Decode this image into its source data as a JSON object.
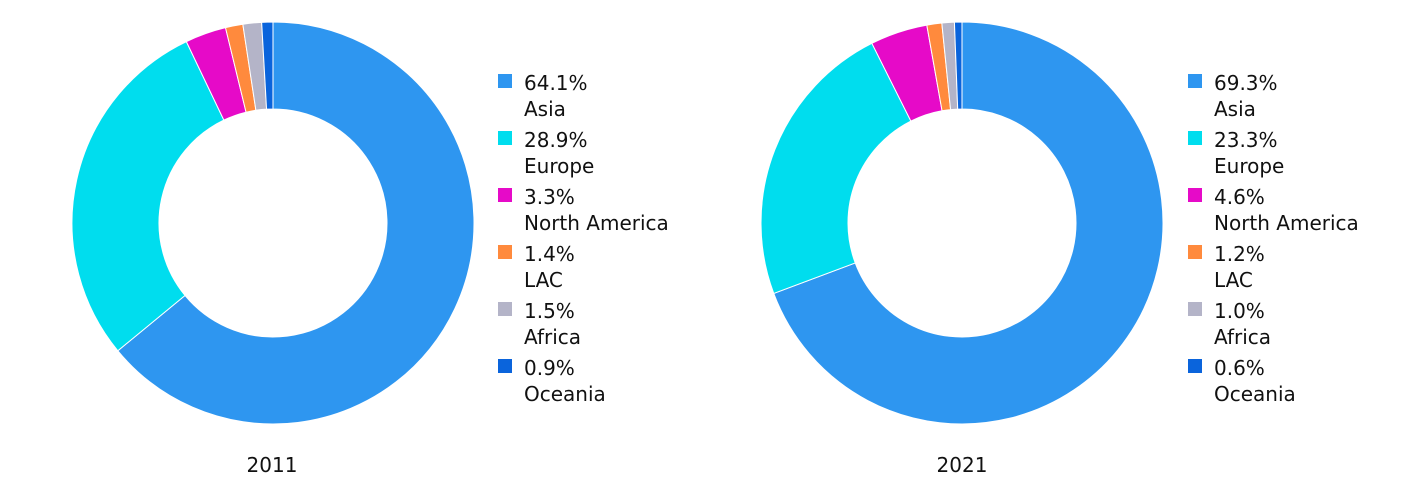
{
  "chart_data": [
    {
      "type": "pie",
      "donut": true,
      "caption": "2011",
      "slices": [
        {
          "label": "Asia",
          "value": 64.1,
          "display": "64.1%",
          "color": "#2E96F0"
        },
        {
          "label": "Europe",
          "value": 28.9,
          "display": "28.9%",
          "color": "#00DDEE"
        },
        {
          "label": "North America",
          "value": 3.3,
          "display": "3.3%",
          "color": "#E60AC8"
        },
        {
          "label": "LAC",
          "value": 1.4,
          "display": "1.4%",
          "color": "#FF8A3D"
        },
        {
          "label": "Africa",
          "value": 1.5,
          "display": "1.5%",
          "color": "#B4B4C8"
        },
        {
          "label": "Oceania",
          "value": 0.9,
          "display": "0.9%",
          "color": "#0A64DC"
        }
      ],
      "legend_position": "right"
    },
    {
      "type": "pie",
      "donut": true,
      "caption": "2021",
      "slices": [
        {
          "label": "Asia",
          "value": 69.3,
          "display": "69.3%",
          "color": "#2E96F0"
        },
        {
          "label": "Europe",
          "value": 23.3,
          "display": "23.3%",
          "color": "#00DDEE"
        },
        {
          "label": "North America",
          "value": 4.6,
          "display": "4.6%",
          "color": "#E60AC8"
        },
        {
          "label": "LAC",
          "value": 1.2,
          "display": "1.2%",
          "color": "#FF8A3D"
        },
        {
          "label": "Africa",
          "value": 1.0,
          "display": "1.0%",
          "color": "#B4B4C8"
        },
        {
          "label": "Oceania",
          "value": 0.6,
          "display": "0.6%",
          "color": "#0A64DC"
        }
      ],
      "legend_position": "right"
    }
  ]
}
